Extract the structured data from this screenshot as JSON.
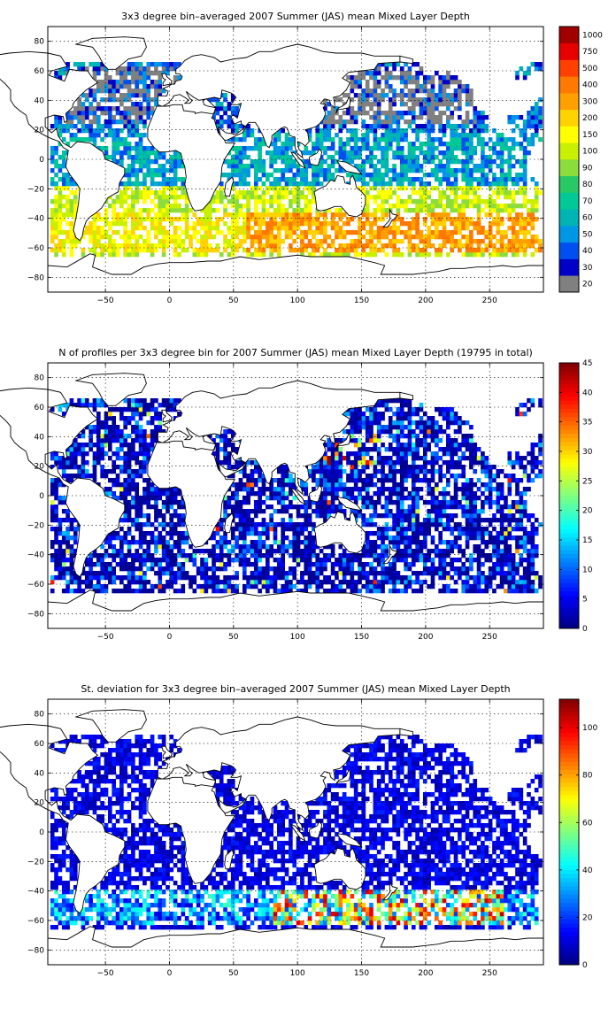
{
  "chart_data": [
    {
      "type": "heatmap",
      "title": "3x3 degree bin–averaged 2007 Summer (JAS) mean Mixed Layer Depth",
      "x_ticks": [
        "-50",
        "0",
        "50",
        "100",
        "150",
        "200",
        "250"
      ],
      "y_ticks": [
        "80",
        "60",
        "40",
        "20",
        "0",
        "−20",
        "−40",
        "−60",
        "−80"
      ],
      "xlim": [
        -95,
        292
      ],
      "ylim": [
        -90,
        90
      ],
      "colorbar": {
        "scale": "categorical",
        "labels": [
          "20",
          "30",
          "40",
          "50",
          "60",
          "70",
          "80",
          "90",
          "100",
          "150",
          "200",
          "300",
          "400",
          "500",
          "750",
          "1000"
        ],
        "colors": [
          "#808080",
          "#0000c8",
          "#0050f0",
          "#0096e6",
          "#00b4b4",
          "#00c896",
          "#28c864",
          "#8cdc3c",
          "#c8f000",
          "#ffff00",
          "#ffd200",
          "#ffa000",
          "#ff7800",
          "#ff4000",
          "#e60000",
          "#a00000"
        ]
      },
      "grid": true,
      "field_description": "mixed layer depth in metres; deepest (300–500) in Southern Ocean 40–60S, 20–60 in tropics, grey (<20) in North Atlantic/Pacific 30–60N"
    },
    {
      "type": "heatmap",
      "title": "N of profiles per 3x3 degree bin for 2007 Summer (JAS) mean Mixed Layer Depth  (19795 in total)",
      "x_ticks": [
        "-50",
        "0",
        "50",
        "100",
        "150",
        "200",
        "250"
      ],
      "y_ticks": [
        "80",
        "60",
        "40",
        "20",
        "0",
        "−20",
        "−40",
        "−60",
        "−80"
      ],
      "xlim": [
        -95,
        292
      ],
      "ylim": [
        -90,
        90
      ],
      "colorbar": {
        "scale": "linear",
        "range": [
          0,
          45
        ],
        "labels": [
          "0",
          "5",
          "10",
          "15",
          "20",
          "25",
          "30",
          "35",
          "40",
          "45"
        ]
      },
      "grid": true,
      "total_profiles": 19795
    },
    {
      "type": "heatmap",
      "title": "St. deviation for 3x3 degree bin–averaged 2007 Summer (JAS) mean Mixed Layer Depth",
      "x_ticks": [
        "-50",
        "0",
        "50",
        "100",
        "150",
        "200",
        "250"
      ],
      "y_ticks": [
        "80",
        "60",
        "40",
        "20",
        "0",
        "−20",
        "−40",
        "−60",
        "−80"
      ],
      "xlim": [
        -95,
        292
      ],
      "ylim": [
        -90,
        90
      ],
      "colorbar": {
        "scale": "linear",
        "range": [
          0,
          112
        ],
        "labels": [
          "0",
          "20",
          "40",
          "60",
          "80",
          "100"
        ]
      },
      "grid": true
    }
  ]
}
